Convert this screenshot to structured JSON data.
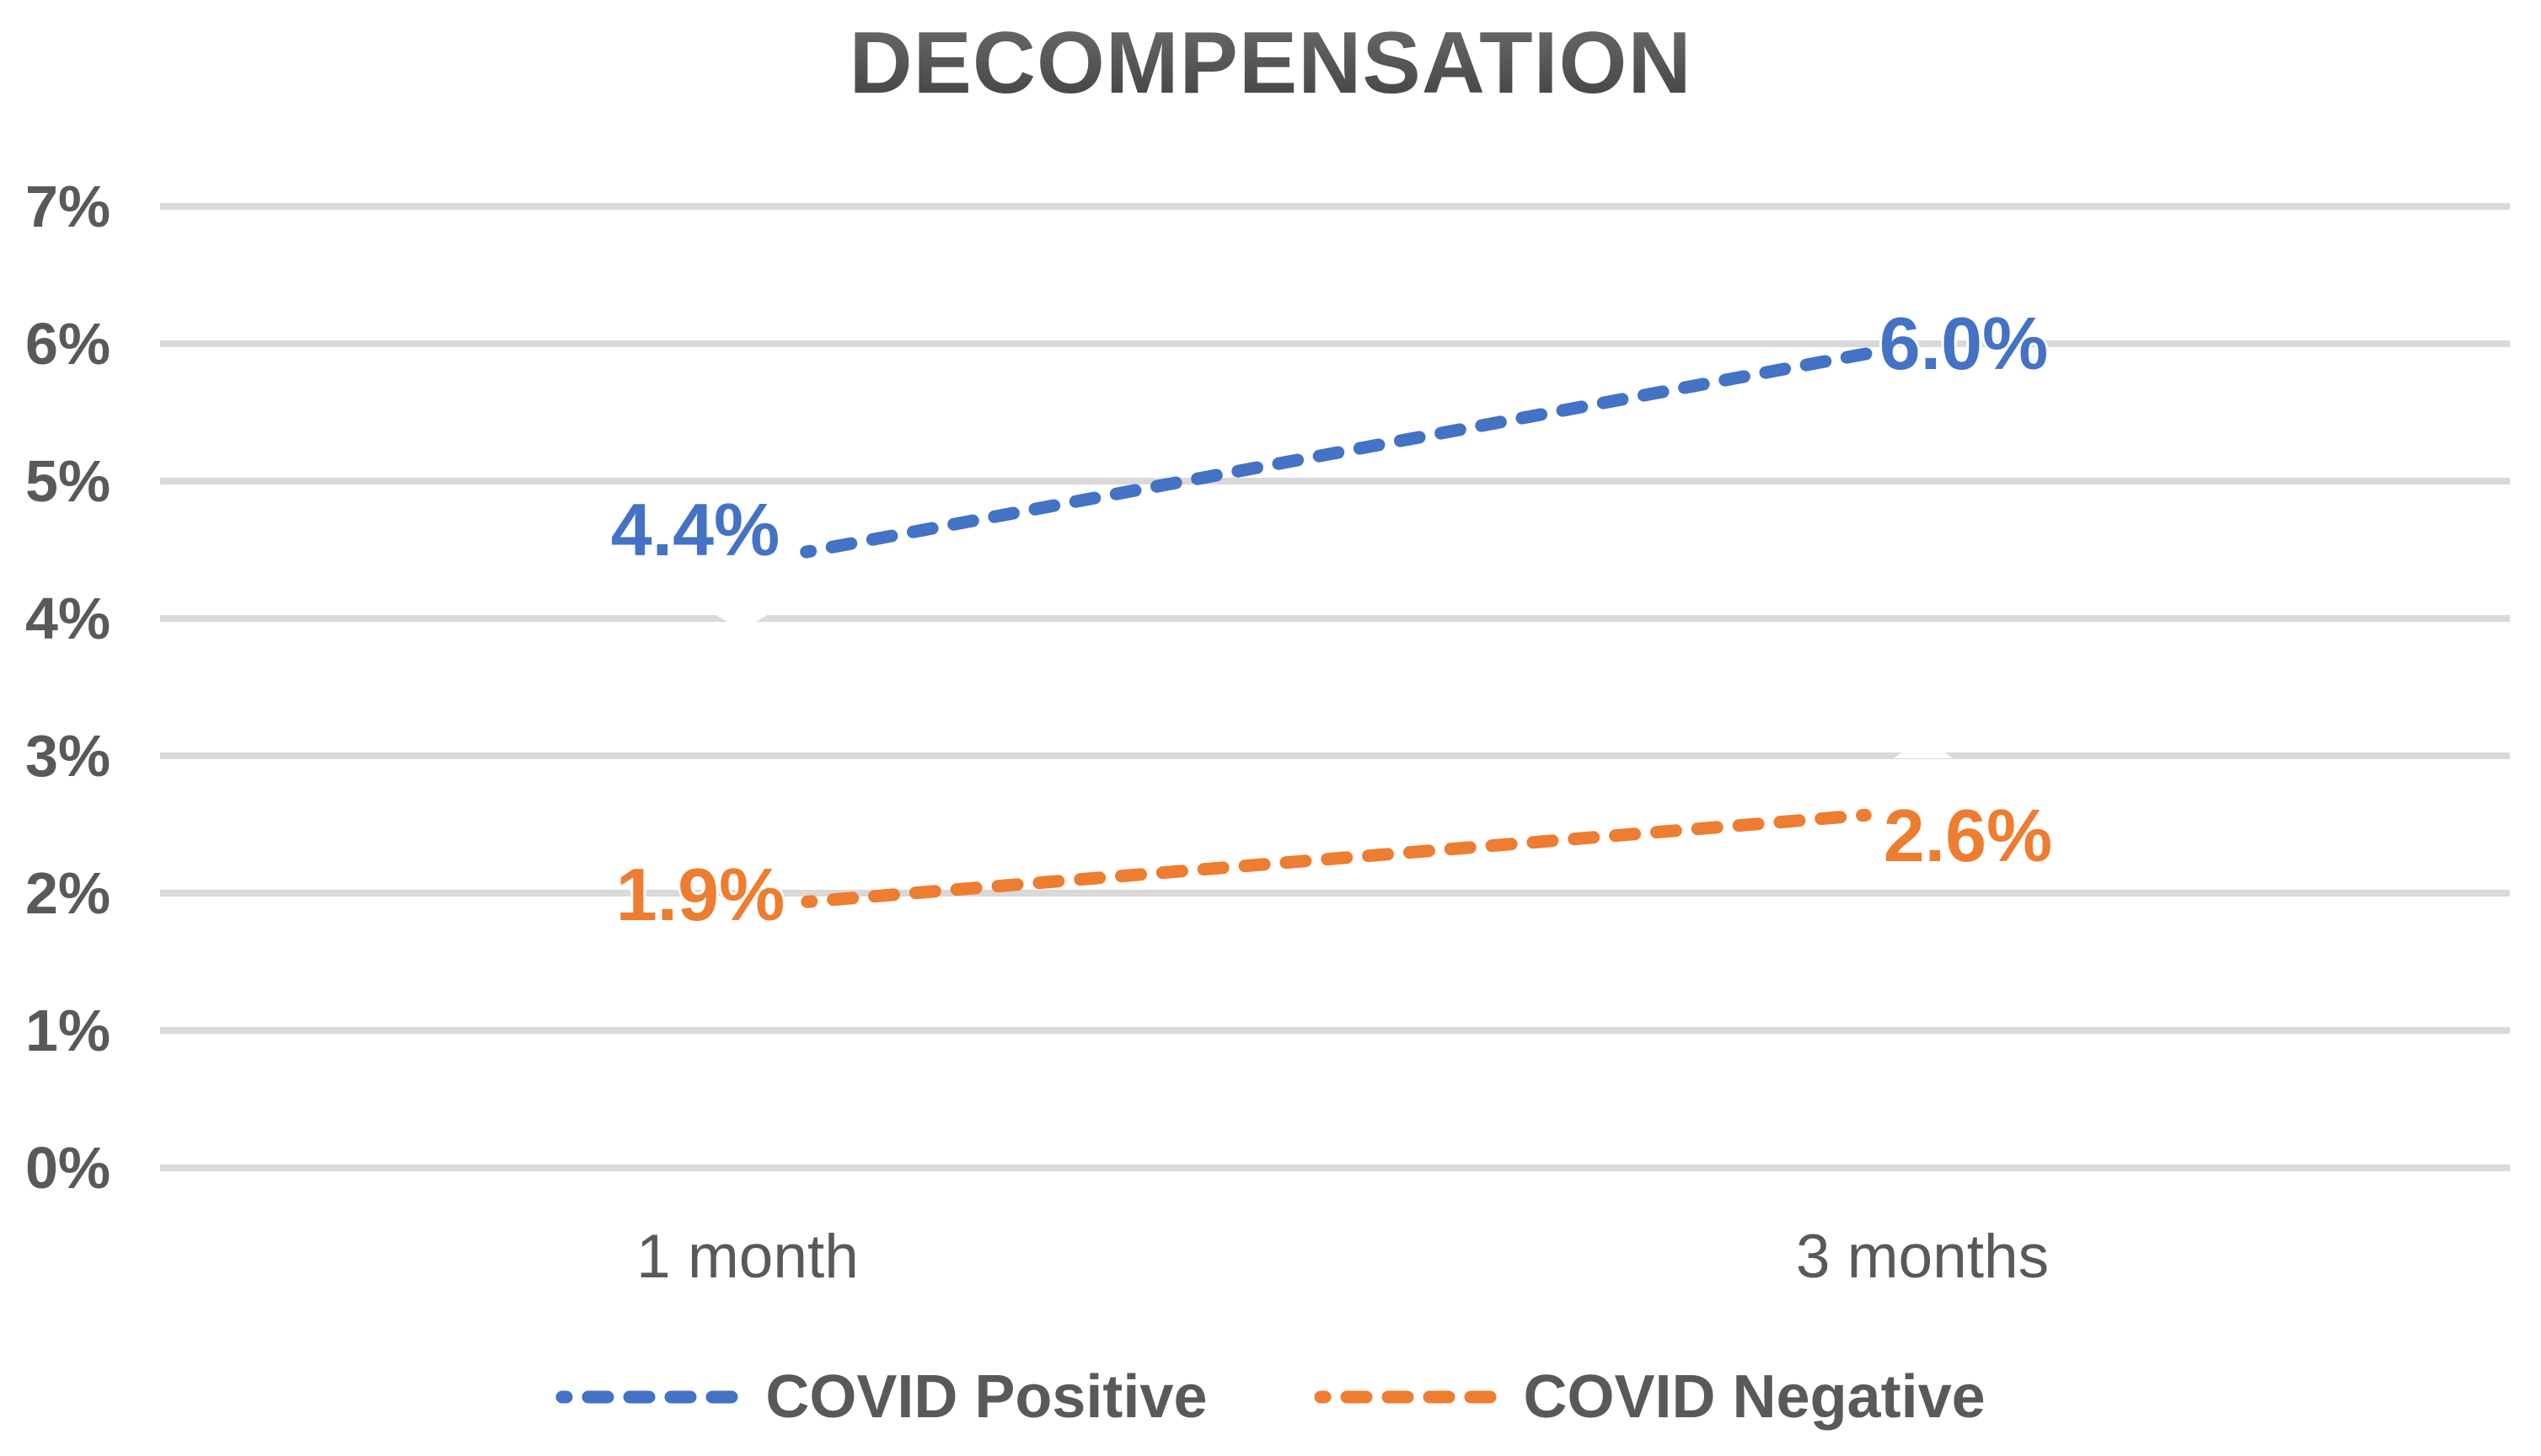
{
  "chart_data": {
    "type": "line",
    "title": "DECOMPENSATION",
    "categories": [
      "1 month",
      "3 months"
    ],
    "series": [
      {
        "name": "COVID Positive",
        "color": "#4472C4",
        "values": [
          4.4,
          6.0
        ],
        "point_labels": [
          "4.4%",
          "6.0%"
        ]
      },
      {
        "name": "COVID Negative",
        "color": "#ED7D31",
        "values": [
          1.9,
          2.6
        ],
        "point_labels": [
          "1.9%",
          "2.6%"
        ]
      }
    ],
    "y_axis": {
      "ticks": [
        "7%",
        "6%",
        "5%",
        "4%",
        "3%",
        "2%",
        "1%",
        "0%"
      ],
      "min": 0,
      "max": 7,
      "unit": "%"
    },
    "line_style": "dashed",
    "grid": true,
    "legend_position": "bottom",
    "colors": {
      "gridline": "#D9D9D9",
      "axis_text": "#595959",
      "title_text": "#4d4d4d"
    }
  }
}
